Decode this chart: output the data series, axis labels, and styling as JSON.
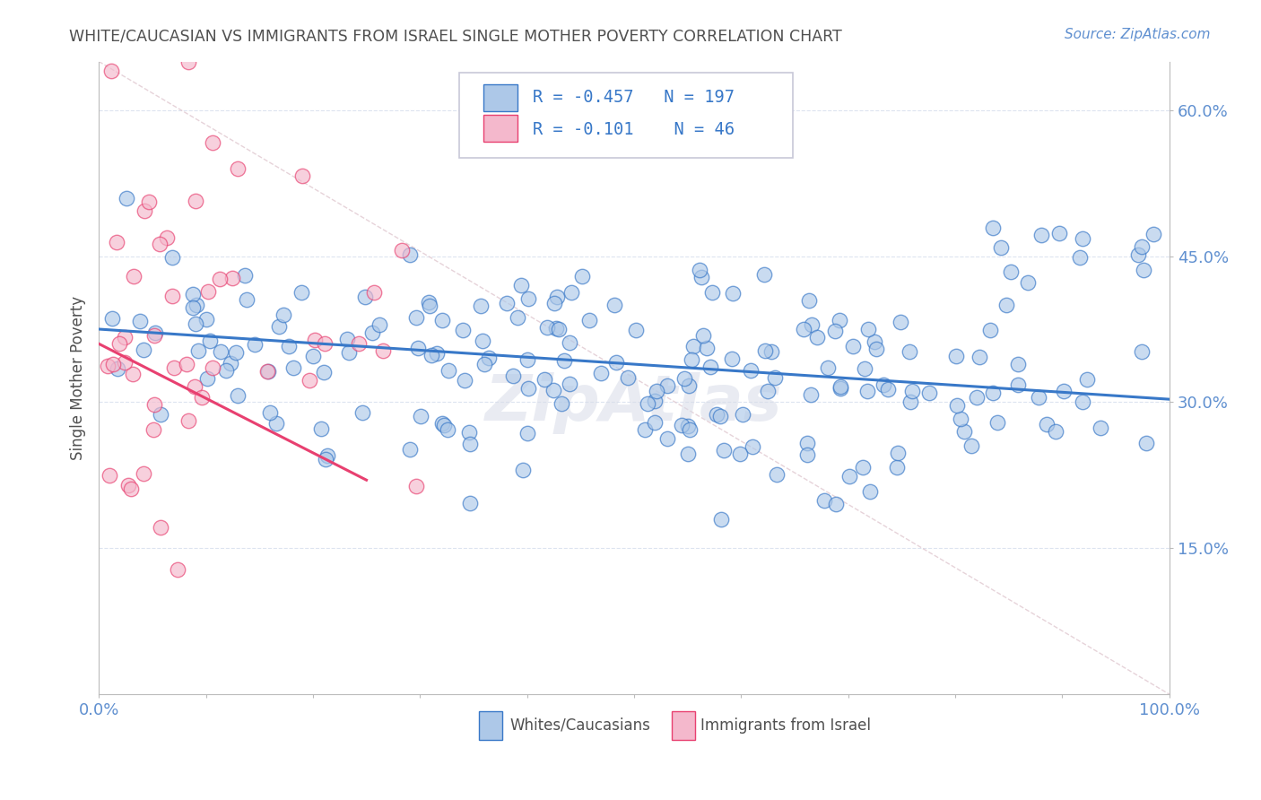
{
  "title": "WHITE/CAUCASIAN VS IMMIGRANTS FROM ISRAEL SINGLE MOTHER POVERTY CORRELATION CHART",
  "source_text": "Source: ZipAtlas.com",
  "ylabel": "Single Mother Poverty",
  "legend_label_1": "Whites/Caucasians",
  "legend_label_2": "Immigrants from Israel",
  "r1": "-0.457",
  "n1": "197",
  "r2": "-0.101",
  "n2": "46",
  "color_blue": "#adc8e8",
  "color_pink": "#f4b8cc",
  "line_color_blue": "#3878c8",
  "line_color_pink": "#e84070",
  "line_color_diag": "#e0c8d0",
  "title_color": "#505050",
  "axis_color": "#6090d0",
  "background_color": "#ffffff",
  "grid_color": "#dde4f0",
  "xlim": [
    0.0,
    1.0
  ],
  "ylim": [
    0.0,
    0.65
  ],
  "ytick_values": [
    0.15,
    0.3,
    0.45,
    0.6
  ],
  "ytick_labels": [
    "15.0%",
    "30.0%",
    "45.0%",
    "60.0%"
  ],
  "xtick_positions": [
    0.0,
    0.1,
    0.2,
    0.3,
    0.4,
    0.5,
    0.6,
    0.7,
    0.8,
    0.9,
    1.0
  ],
  "xtick_edge_labels": [
    "0.0%",
    "100.0%"
  ],
  "blue_line_x": [
    0.0,
    1.0
  ],
  "blue_line_y": [
    0.375,
    0.303
  ],
  "pink_line_x": [
    0.0,
    0.25
  ],
  "pink_line_y": [
    0.36,
    0.22
  ],
  "diag_line_x": [
    0.0,
    1.0
  ],
  "diag_line_y": [
    0.65,
    0.0
  ],
  "watermark": "ZipAtlas",
  "watermark_color": "#d8dce8"
}
